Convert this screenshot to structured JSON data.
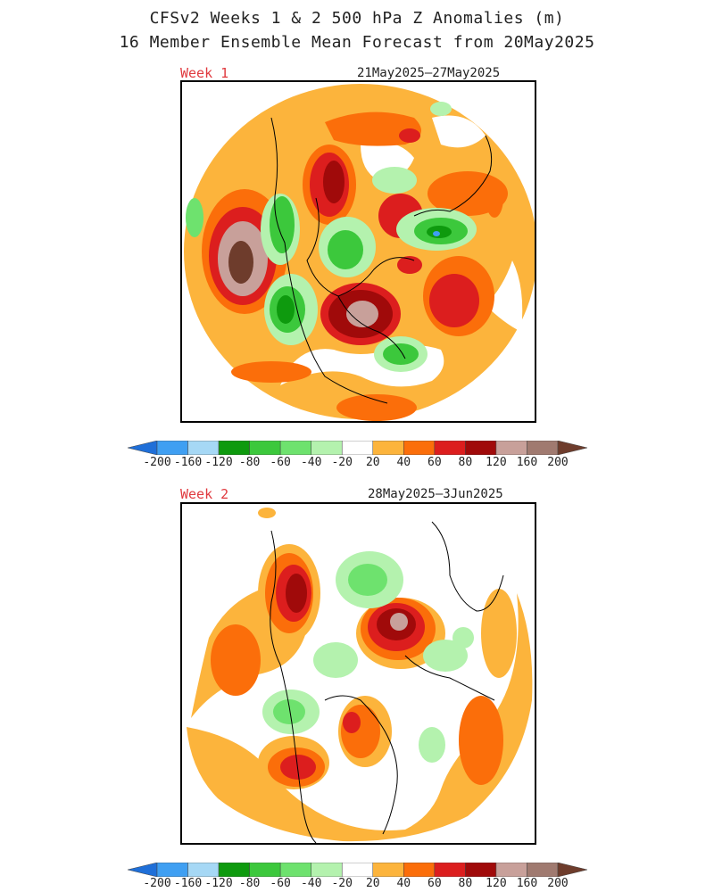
{
  "title_line1": "CFSv2 Weeks 1 & 2 500 hPa Z Anomalies (m)",
  "title_line2": "16 Member Ensemble Mean Forecast from 20May2025",
  "panels": [
    {
      "label": "Week 1",
      "dates": "21May2025—27May2025"
    },
    {
      "label": "Week 2",
      "dates": "28May2025—3Jun2025"
    }
  ],
  "colorbar": {
    "labels": [
      "-200",
      "-160",
      "-120",
      "-80",
      "-60",
      "-40",
      "-20",
      "20",
      "40",
      "60",
      "80",
      "120",
      "160",
      "200"
    ],
    "colors": [
      "#1f6fd8",
      "#3f9ff2",
      "#a6d8f5",
      "#0e9a0e",
      "#3cc83c",
      "#6ee26e",
      "#b4f2ae",
      "#ffffff",
      "#fcb43c",
      "#fb6e0a",
      "#dc1e1e",
      "#a00a0a",
      "#c8a09a",
      "#a07a70",
      "#6e3c2c"
    ],
    "units": "m"
  },
  "colors": {
    "title_text": "#222222",
    "week_label": "#e0393e",
    "border": "#000000"
  }
}
